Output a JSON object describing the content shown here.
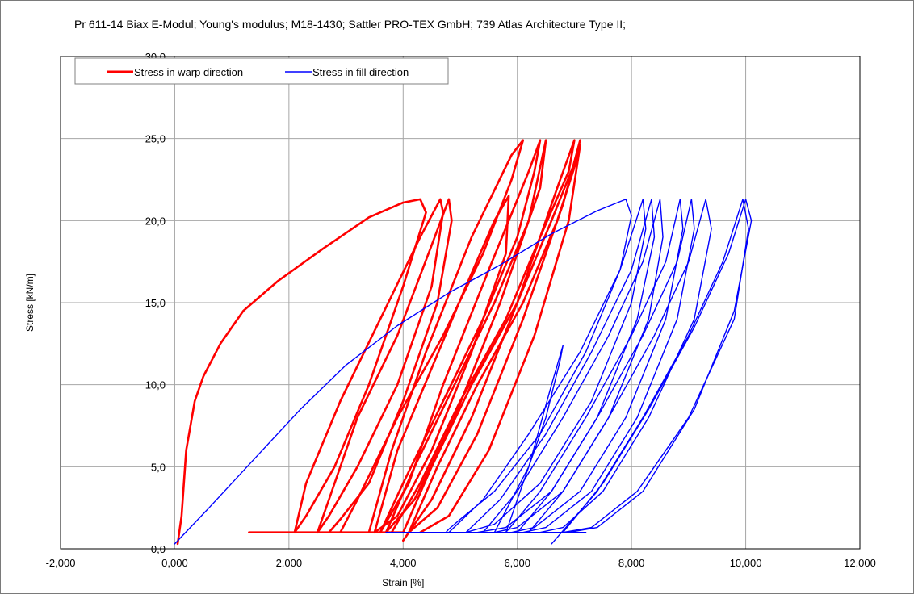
{
  "chart_data": {
    "type": "line",
    "title": "Pr 611-14 Biax E-Modul; Young's modulus; M18-1430; Sattler PRO-TEX GmbH; 739 Atlas Architecture Type II;",
    "xlabel": "Strain [%]",
    "ylabel": "Stress [kN/m]",
    "xlim": [
      -2,
      12
    ],
    "ylim": [
      0,
      30
    ],
    "x_ticks": [
      -2,
      0,
      2,
      4,
      6,
      8,
      10,
      12
    ],
    "y_ticks": [
      0,
      5,
      10,
      15,
      20,
      25,
      30
    ],
    "x_tick_labels": [
      "-2,000",
      "0,000",
      "2,000",
      "4,000",
      "6,000",
      "8,000",
      "10,000",
      "12,000"
    ],
    "y_tick_labels": [
      "0,0",
      "5,0",
      "10,0",
      "15,0",
      "20,0",
      "25,0",
      "30,0"
    ],
    "grid": true,
    "legend_position": "top-left",
    "series": [
      {
        "name": "Stress in warp direction",
        "color": "#ff0000",
        "loops": [
          {
            "x": [
              0.05,
              0.12,
              0.2,
              0.35,
              0.5,
              0.8,
              1.2,
              1.8,
              2.6,
              3.4,
              4.0,
              4.3,
              4.4,
              4.0,
              3.4,
              2.8,
              2.3,
              2.1,
              2.1
            ],
            "y": [
              0.3,
              2,
              6,
              9,
              10.5,
              12.5,
              14.5,
              16.3,
              18.3,
              20.2,
              21.1,
              21.3,
              20.5,
              16,
              10,
              5,
              2,
              1,
              1
            ]
          },
          {
            "x": [
              1.3,
              2.5,
              4.0
            ],
            "y": [
              1,
              1,
              1
            ]
          },
          {
            "x": [
              2.1,
              2.3,
              2.9,
              3.6,
              4.3,
              4.65,
              4.7,
              4.5,
              3.9,
              3.2,
              2.7,
              2.5
            ],
            "y": [
              1,
              4,
              9,
              14,
              19,
              21.3,
              20.5,
              16,
              10,
              5,
              2,
              1
            ]
          },
          {
            "x": [
              2.5,
              2.7,
              3.2,
              3.9,
              4.5,
              4.8,
              4.85,
              4.6,
              4.0,
              3.4,
              2.9,
              2.7
            ],
            "y": [
              1,
              3,
              8,
              13,
              18.5,
              21.3,
              20,
              15,
              9,
              4,
              1.8,
              1
            ]
          },
          {
            "x": [
              2.9,
              3.2,
              3.9,
              4.7,
              5.4,
              5.9,
              6.1,
              5.9,
              5.2,
              4.4,
              3.8,
              3.4
            ],
            "y": [
              1,
              3,
              8,
              13,
              18,
              22.5,
              24.9,
              24,
              19,
              12,
              6,
              1
            ]
          },
          {
            "x": [
              3.5,
              3.9,
              4.5,
              5.1,
              5.6,
              5.85,
              5.8,
              5.2,
              4.5,
              3.9,
              3.5
            ],
            "y": [
              1,
              6,
              11,
              16,
              20,
              21.5,
              18,
              12,
              6,
              2,
              1
            ]
          },
          {
            "x": [
              3.6,
              4.0,
              4.7,
              5.4,
              6.0,
              6.3,
              6.4,
              6.2,
              5.5,
              4.7,
              4.1,
              3.6
            ],
            "y": [
              1,
              4,
              9,
              14,
              19,
              23,
              24.9,
              23,
              17,
              10,
              4,
              1
            ]
          },
          {
            "x": [
              3.7,
              4.2,
              4.9,
              5.6,
              6.2,
              6.5,
              6.4,
              5.7,
              4.9,
              4.2,
              3.7
            ],
            "y": [
              1,
              5,
              10,
              15,
              20,
              24.9,
              22,
              15,
              8,
              3,
              1
            ]
          },
          {
            "x": [
              3.8,
              4.3,
              5.0,
              5.8,
              6.4,
              6.9,
              7.0,
              6.7,
              6.0,
              5.2,
              4.5,
              4.0
            ],
            "y": [
              1,
              4,
              9,
              14,
              19,
              23,
              24.9,
              22,
              15,
              8,
              3,
              0.5
            ]
          },
          {
            "x": [
              4.0,
              4.5,
              5.2,
              6.0,
              6.6,
              7.0,
              7.1,
              6.8,
              6.1,
              5.3,
              4.6,
              4.1
            ],
            "y": [
              1,
              5,
              10,
              15,
              20,
              23.5,
              24.9,
              21,
              14,
              7,
              2.5,
              1
            ]
          },
          {
            "x": [
              4.1,
              4.6,
              5.3,
              6.1,
              6.7,
              7.05,
              7.1,
              6.9,
              6.3,
              5.5,
              4.8,
              4.3
            ],
            "y": [
              1,
              5,
              10,
              15,
              20,
              23.8,
              24.6,
              20,
              13,
              6,
              2,
              1
            ]
          }
        ]
      },
      {
        "name": "Stress in fill direction",
        "color": "#0000ff",
        "loops": [
          {
            "x": [
              0.0,
              0.6,
              1.4,
              2.2,
              3.0,
              3.9,
              4.8,
              5.7,
              6.6,
              7.4,
              7.9,
              8.0,
              7.8,
              7.2,
              6.4,
              5.6,
              5.0,
              4.8,
              4.75
            ],
            "y": [
              0.3,
              2.5,
              5.5,
              8.5,
              11.2,
              13.6,
              15.6,
              17.3,
              19.2,
              20.6,
              21.3,
              20.3,
              17,
              12,
              7,
              3.5,
              1.8,
              1.2,
              1
            ]
          },
          {
            "x": [
              3.7,
              5.0,
              6.5,
              7.2
            ],
            "y": [
              1,
              1,
              1,
              1
            ]
          },
          {
            "x": [
              4.8,
              5.4,
              6.2,
              7.1,
              7.8,
              8.2,
              8.25,
              8.0,
              7.3,
              6.4,
              5.6,
              5.1
            ],
            "y": [
              1,
              3,
              7,
              12,
              17,
              21.3,
              19.5,
              15,
              9,
              4,
              1.5,
              1
            ]
          },
          {
            "x": [
              5.1,
              5.7,
              6.5,
              7.3,
              8.0,
              8.35,
              8.4,
              8.1,
              7.4,
              6.6,
              5.8,
              5.3
            ],
            "y": [
              1,
              3,
              7,
              12,
              17,
              21.3,
              19,
              14,
              8,
              3.5,
              1.3,
              1
            ]
          },
          {
            "x": [
              5.4,
              6.0,
              6.8,
              7.6,
              8.2,
              8.5,
              8.55,
              8.3,
              7.6,
              6.8,
              6.0,
              5.6
            ],
            "y": [
              1,
              3.5,
              8,
              13,
              17.5,
              21.3,
              19,
              14,
              8,
              3.5,
              1.3,
              1
            ]
          },
          {
            "x": [
              5.6,
              6.2,
              6.6,
              6.8,
              6.75,
              6.5,
              6.1,
              5.8
            ],
            "y": [
              1,
              5,
              10,
              12.4,
              11.5,
              8,
              4,
              1
            ]
          },
          {
            "x": [
              5.8,
              6.4,
              7.2,
              8.0,
              8.6,
              8.85,
              8.9,
              8.6,
              7.9,
              7.1,
              6.3,
              5.9
            ],
            "y": [
              1,
              3.5,
              8,
              13,
              17.5,
              21.3,
              19.5,
              14,
              8,
              3.5,
              1.3,
              1
            ]
          },
          {
            "x": [
              6.0,
              6.6,
              7.4,
              8.2,
              8.8,
              9.05,
              9.1,
              8.8,
              8.1,
              7.3,
              6.5,
              6.1
            ],
            "y": [
              1,
              3.5,
              8,
              13,
              17.5,
              21.3,
              19.5,
              14,
              8,
              3.5,
              1.3,
              1
            ]
          },
          {
            "x": [
              6.2,
              6.8,
              7.6,
              8.4,
              9.0,
              9.3,
              9.4,
              9.1,
              8.3,
              7.5,
              6.8,
              6.4
            ],
            "y": [
              1,
              3.5,
              8,
              13,
              17.5,
              21.3,
              19.5,
              14,
              8,
              3.5,
              1.3,
              1
            ]
          },
          {
            "x": [
              6.6,
              7.4,
              8.2,
              9.0,
              9.6,
              9.95,
              10.05,
              9.8,
              9.0,
              8.1,
              7.3,
              6.8
            ],
            "y": [
              0.3,
              3.5,
              8,
              13,
              17.5,
              21.3,
              19.5,
              14,
              8,
              3.5,
              1.3,
              1
            ]
          },
          {
            "x": [
              6.8,
              7.5,
              8.3,
              9.1,
              9.7,
              10.0,
              10.1,
              9.8,
              9.1,
              8.2,
              7.4,
              6.9
            ],
            "y": [
              1,
              4,
              8.5,
              13.5,
              18,
              21.3,
              20,
              14.5,
              8.5,
              3.5,
              1.3,
              1
            ]
          }
        ]
      }
    ]
  }
}
